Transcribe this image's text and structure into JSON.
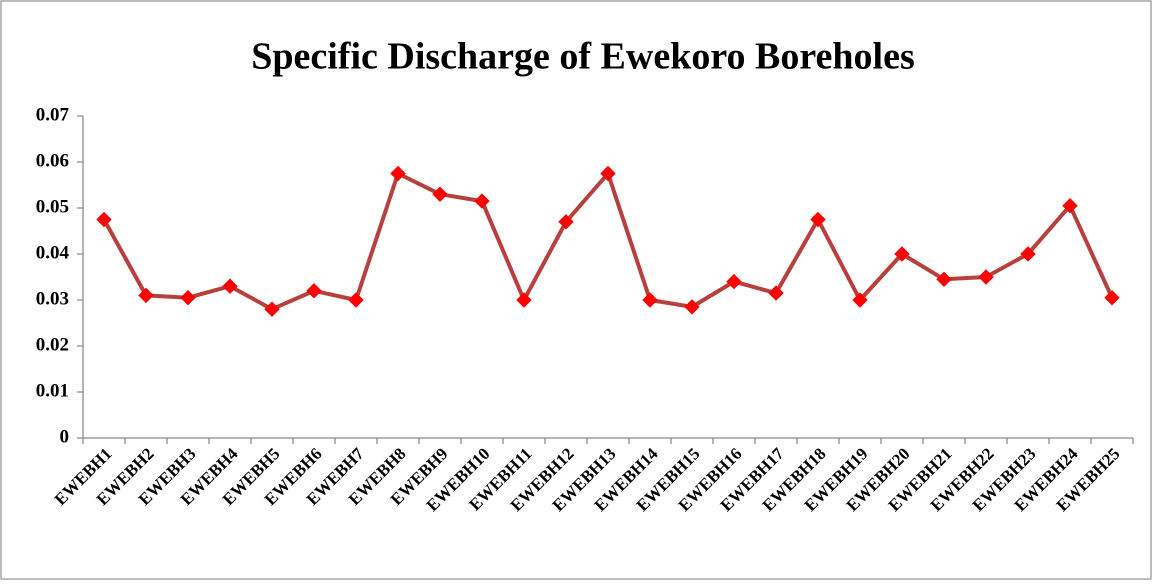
{
  "chart_data": {
    "type": "line",
    "title": "Specific Discharge of Ewekoro Boreholes",
    "categories": [
      "EWEBH1",
      "EWEBH2",
      "EWEBH3",
      "EWEBH4",
      "EWEBH5",
      "EWEBH6",
      "EWEBH7",
      "EWEBH8",
      "EWEBH9",
      "EWEBH10",
      "EWEBH11",
      "EWEBH12",
      "EWEBH13",
      "EWEBH14",
      "EWEBH15",
      "EWEBH16",
      "EWEBH17",
      "EWEBH18",
      "EWEBH19",
      "EWEBH20",
      "EWEBH21",
      "EWEBH22",
      "EWEBH23",
      "EWEBH24",
      "EWEBH25"
    ],
    "values": [
      0.0475,
      0.031,
      0.0305,
      0.033,
      0.028,
      0.032,
      0.03,
      0.0575,
      0.053,
      0.0515,
      0.03,
      0.047,
      0.0575,
      0.03,
      0.0285,
      0.034,
      0.0315,
      0.0475,
      0.03,
      0.04,
      0.0345,
      0.035,
      0.04,
      0.0505,
      0.0305
    ],
    "color": "#b8403c",
    "marker_color": "#ff0000",
    "ylim": [
      0,
      0.07
    ],
    "yticks": [
      0,
      0.01,
      0.02,
      0.03,
      0.04,
      0.05,
      0.06,
      0.07
    ],
    "grid": false
  }
}
